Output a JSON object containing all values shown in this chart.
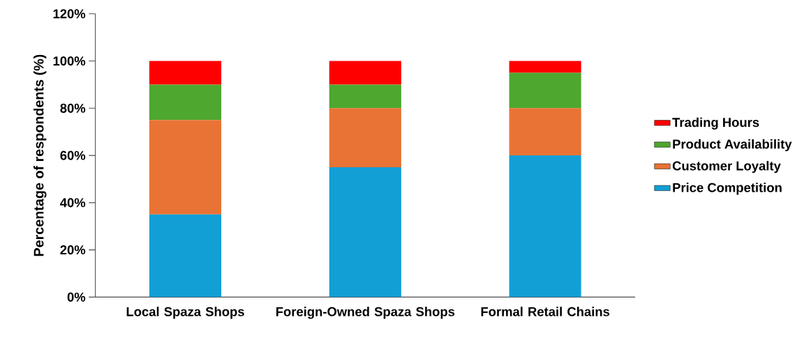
{
  "chart_data": {
    "type": "bar",
    "stacked": true,
    "ylabel": "Percentage of respondents (%)",
    "categories": [
      "Local Spaza Shops",
      "Foreign-Owned Spaza Shops",
      "Formal Retail Chains"
    ],
    "series": [
      {
        "name": "Price Competition",
        "color": "#129fd6",
        "values": [
          35,
          55,
          60
        ]
      },
      {
        "name": "Customer Loyalty",
        "color": "#e97334",
        "values": [
          40,
          25,
          20
        ]
      },
      {
        "name": "Product Availability",
        "color": "#4ea72e",
        "values": [
          15,
          10,
          15
        ]
      },
      {
        "name": "Trading Hours",
        "color": "#ff0000",
        "values": [
          10,
          10,
          5
        ]
      }
    ],
    "ylim": [
      0,
      120
    ],
    "yticks": [
      {
        "value": 0,
        "label": "0%"
      },
      {
        "value": 20,
        "label": "20%"
      },
      {
        "value": 40,
        "label": "40%"
      },
      {
        "value": 60,
        "label": "60%"
      },
      {
        "value": 80,
        "label": "80%"
      },
      {
        "value": 100,
        "label": "100%"
      },
      {
        "value": 120,
        "label": "120%"
      }
    ],
    "legend": "right"
  }
}
